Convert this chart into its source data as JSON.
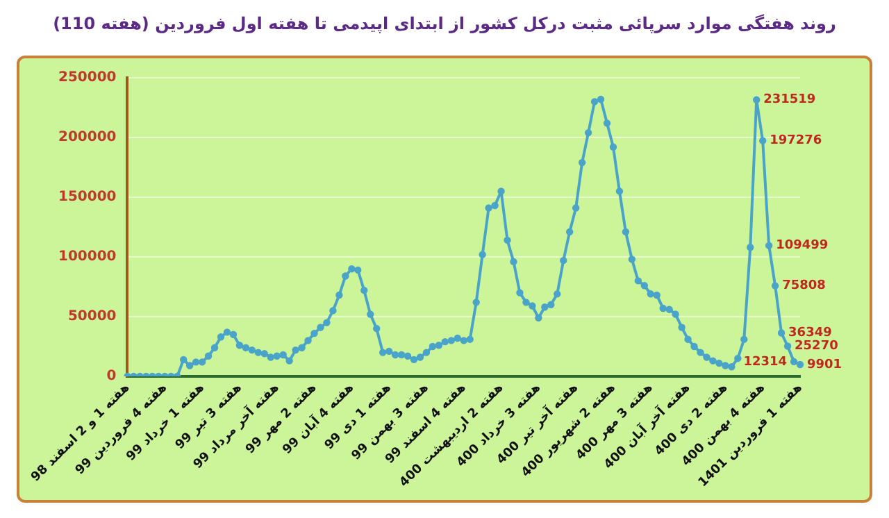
{
  "chart_data": {
    "type": "line",
    "title": "روند هفتگی موارد سرپائی مثبت  درکل کشور از ابتدای اپیدمی تا هفته اول فروردین (هفته 110)",
    "categories": [
      "هفته 1 و 2 اسفند 98",
      null,
      null,
      null,
      null,
      null,
      "هفته 4 فروردین 99",
      null,
      null,
      null,
      null,
      null,
      "هفته 1 خرداد 99",
      null,
      null,
      null,
      null,
      null,
      "هفته 3 تیر 99",
      null,
      null,
      null,
      null,
      null,
      "هفته آخر مرداد 99",
      null,
      null,
      null,
      null,
      null,
      "هفته 2 مهر 99",
      null,
      null,
      null,
      null,
      null,
      "هفته 4 آبان 99",
      null,
      null,
      null,
      null,
      null,
      "هفته 1 دی 99",
      null,
      null,
      null,
      null,
      null,
      "هفته 3 بهمن 99",
      null,
      null,
      null,
      null,
      null,
      "هفته 4 اسفند 99",
      null,
      null,
      null,
      null,
      null,
      "هفته 2 اردیبهشت 400",
      null,
      null,
      null,
      null,
      null,
      "هفته 3 خرداد 400",
      null,
      null,
      null,
      null,
      null,
      "هفته آخر تیر 400",
      null,
      null,
      null,
      null,
      null,
      "هفته 2 شهریور 400",
      null,
      null,
      null,
      null,
      null,
      "هفته 3 مهر 400",
      null,
      null,
      null,
      null,
      null,
      "هفته آخر آبان 400",
      null,
      null,
      null,
      null,
      null,
      "هفته 2 دی 400",
      null,
      null,
      null,
      null,
      null,
      "هفته 4 بهمن 400",
      null,
      null,
      null,
      null,
      null,
      "هفته 1 فروردین 1401"
    ],
    "series": [
      {
        "color": "#4aa3c9",
        "values": [
          0,
          0,
          0,
          0,
          0,
          0,
          0,
          0,
          0,
          14000,
          9000,
          12000,
          12000,
          17000,
          24000,
          33000,
          37000,
          35000,
          26000,
          24000,
          22000,
          20000,
          19000,
          16000,
          17000,
          18000,
          13000,
          22000,
          24000,
          30000,
          36000,
          41000,
          45000,
          55000,
          68000,
          84000,
          90000,
          89000,
          72000,
          52000,
          40000,
          20000,
          21000,
          18000,
          18000,
          17000,
          14000,
          16000,
          20000,
          25000,
          26000,
          29000,
          30000,
          32000,
          30000,
          31000,
          62000,
          102000,
          141000,
          143000,
          155000,
          114000,
          96000,
          70000,
          62000,
          59000,
          49000,
          58000,
          60000,
          69000,
          97000,
          121000,
          141000,
          179000,
          204000,
          230000,
          232000,
          212000,
          192000,
          155000,
          121000,
          98000,
          80000,
          76000,
          69000,
          68000,
          57000,
          56000,
          52000,
          41000,
          31000,
          25000,
          20000,
          16000,
          13000,
          11000,
          9000,
          8000,
          15000,
          31000,
          108000,
          231519,
          197276,
          109499,
          75808,
          36349,
          25270,
          12314,
          9901
        ],
        "value_labels": [
          null,
          null,
          null,
          null,
          null,
          null,
          null,
          null,
          null,
          null,
          null,
          null,
          null,
          null,
          null,
          null,
          null,
          null,
          null,
          null,
          null,
          null,
          null,
          null,
          null,
          null,
          null,
          null,
          null,
          null,
          null,
          null,
          null,
          null,
          null,
          null,
          null,
          null,
          null,
          null,
          null,
          null,
          null,
          null,
          null,
          null,
          null,
          null,
          null,
          null,
          null,
          null,
          null,
          null,
          null,
          null,
          null,
          null,
          null,
          null,
          null,
          null,
          null,
          null,
          null,
          null,
          null,
          null,
          null,
          null,
          null,
          null,
          null,
          null,
          null,
          null,
          null,
          null,
          null,
          null,
          null,
          null,
          null,
          null,
          null,
          null,
          null,
          null,
          null,
          null,
          null,
          null,
          null,
          null,
          null,
          null,
          null,
          null,
          null,
          null,
          null,
          "231519",
          "197276",
          "109499",
          "75808",
          "36349",
          "25270",
          "12314",
          "9901"
        ]
      }
    ],
    "ylim": [
      0,
      250000
    ],
    "yticks": [
      0,
      50000,
      100000,
      150000,
      200000,
      250000
    ],
    "grid": "y",
    "marker": "circle",
    "line_style": "solid"
  }
}
